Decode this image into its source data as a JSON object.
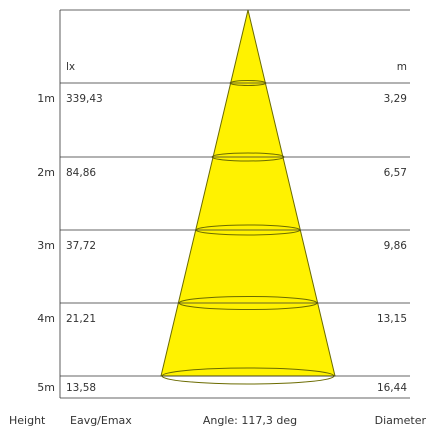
{
  "units": {
    "illuminance": "lx",
    "diameter": "m"
  },
  "rows": [
    {
      "distance": "1m",
      "illuminance": "339,43",
      "diameter": "3,29"
    },
    {
      "distance": "2m",
      "illuminance": "84,86",
      "diameter": "6,57"
    },
    {
      "distance": "3m",
      "illuminance": "37,72",
      "diameter": "9,86"
    },
    {
      "distance": "4m",
      "illuminance": "21,21",
      "diameter": "13,15"
    },
    {
      "distance": "5m",
      "illuminance": "13,58",
      "diameter": "16,44"
    }
  ],
  "footer": {
    "height_label": "Height",
    "illuminance_label": "Eavg/Emax",
    "angle_label": "Angle: 117,3 deg",
    "diameter_label": "Diameter"
  },
  "colors": {
    "beam": "#fff200",
    "beam_stroke": "#6b6b00",
    "lines": "#333333"
  }
}
